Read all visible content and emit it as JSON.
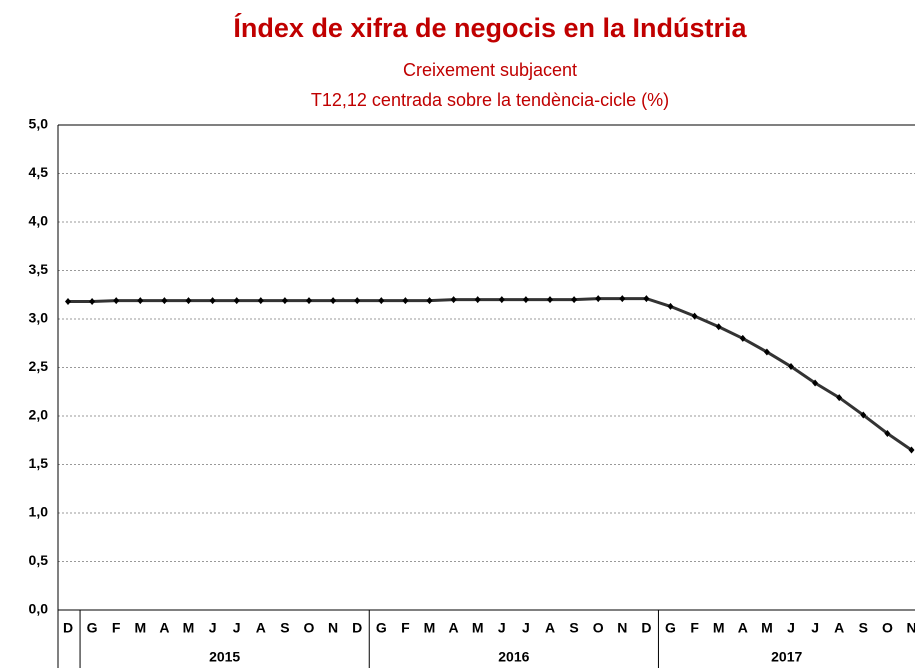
{
  "chart_data": {
    "type": "line",
    "title": "Índex de xifra de negocis en la Indústria",
    "subtitle": "Creixement  subjacent",
    "subtitle2": "T12,12 centrada sobre la tendència-cicle (%)",
    "categories": [
      "D",
      "G",
      "F",
      "M",
      "A",
      "M",
      "J",
      "J",
      "A",
      "S",
      "O",
      "N",
      "D",
      "G",
      "F",
      "M",
      "A",
      "M",
      "J",
      "J",
      "A",
      "S",
      "O",
      "N",
      "D",
      "G",
      "F",
      "M",
      "A",
      "M",
      "J",
      "J",
      "A",
      "S",
      "O",
      "N"
    ],
    "years": [
      null,
      "2015",
      "2015",
      "2015",
      "2015",
      "2015",
      "2015",
      "2015",
      "2015",
      "2015",
      "2015",
      "2015",
      "2015",
      "2016",
      "2016",
      "2016",
      "2016",
      "2016",
      "2016",
      "2016",
      "2016",
      "2016",
      "2016",
      "2016",
      "2016",
      "2017",
      "2017",
      "2017",
      "2017",
      "2017",
      "2017",
      "2017",
      "2017",
      "2017",
      "2017",
      "2017"
    ],
    "series": [
      {
        "color": "#333333",
        "values": [
          3.18,
          3.18,
          3.19,
          3.19,
          3.19,
          3.19,
          3.19,
          3.19,
          3.19,
          3.19,
          3.19,
          3.19,
          3.19,
          3.19,
          3.19,
          3.19,
          3.2,
          3.2,
          3.2,
          3.2,
          3.2,
          3.2,
          3.21,
          3.21,
          3.21,
          3.13,
          3.03,
          2.92,
          2.8,
          2.66,
          2.51,
          2.34,
          2.19,
          2.01,
          1.82,
          1.65
        ]
      }
    ],
    "ylim": [
      0,
      5
    ],
    "yticks": [
      {
        "value": 0,
        "label": "0,0"
      },
      {
        "value": 0.5,
        "label": "0,5"
      },
      {
        "value": 1,
        "label": "1,0"
      },
      {
        "value": 1.5,
        "label": "1,5"
      },
      {
        "value": 2,
        "label": "2,0"
      },
      {
        "value": 2.5,
        "label": "2,5"
      },
      {
        "value": 3,
        "label": "3,0"
      },
      {
        "value": 3.5,
        "label": "3,5"
      },
      {
        "value": 4,
        "label": "4,0"
      },
      {
        "value": 4.5,
        "label": "4,5"
      },
      {
        "value": 5,
        "label": "5,0"
      }
    ],
    "grid": true
  }
}
